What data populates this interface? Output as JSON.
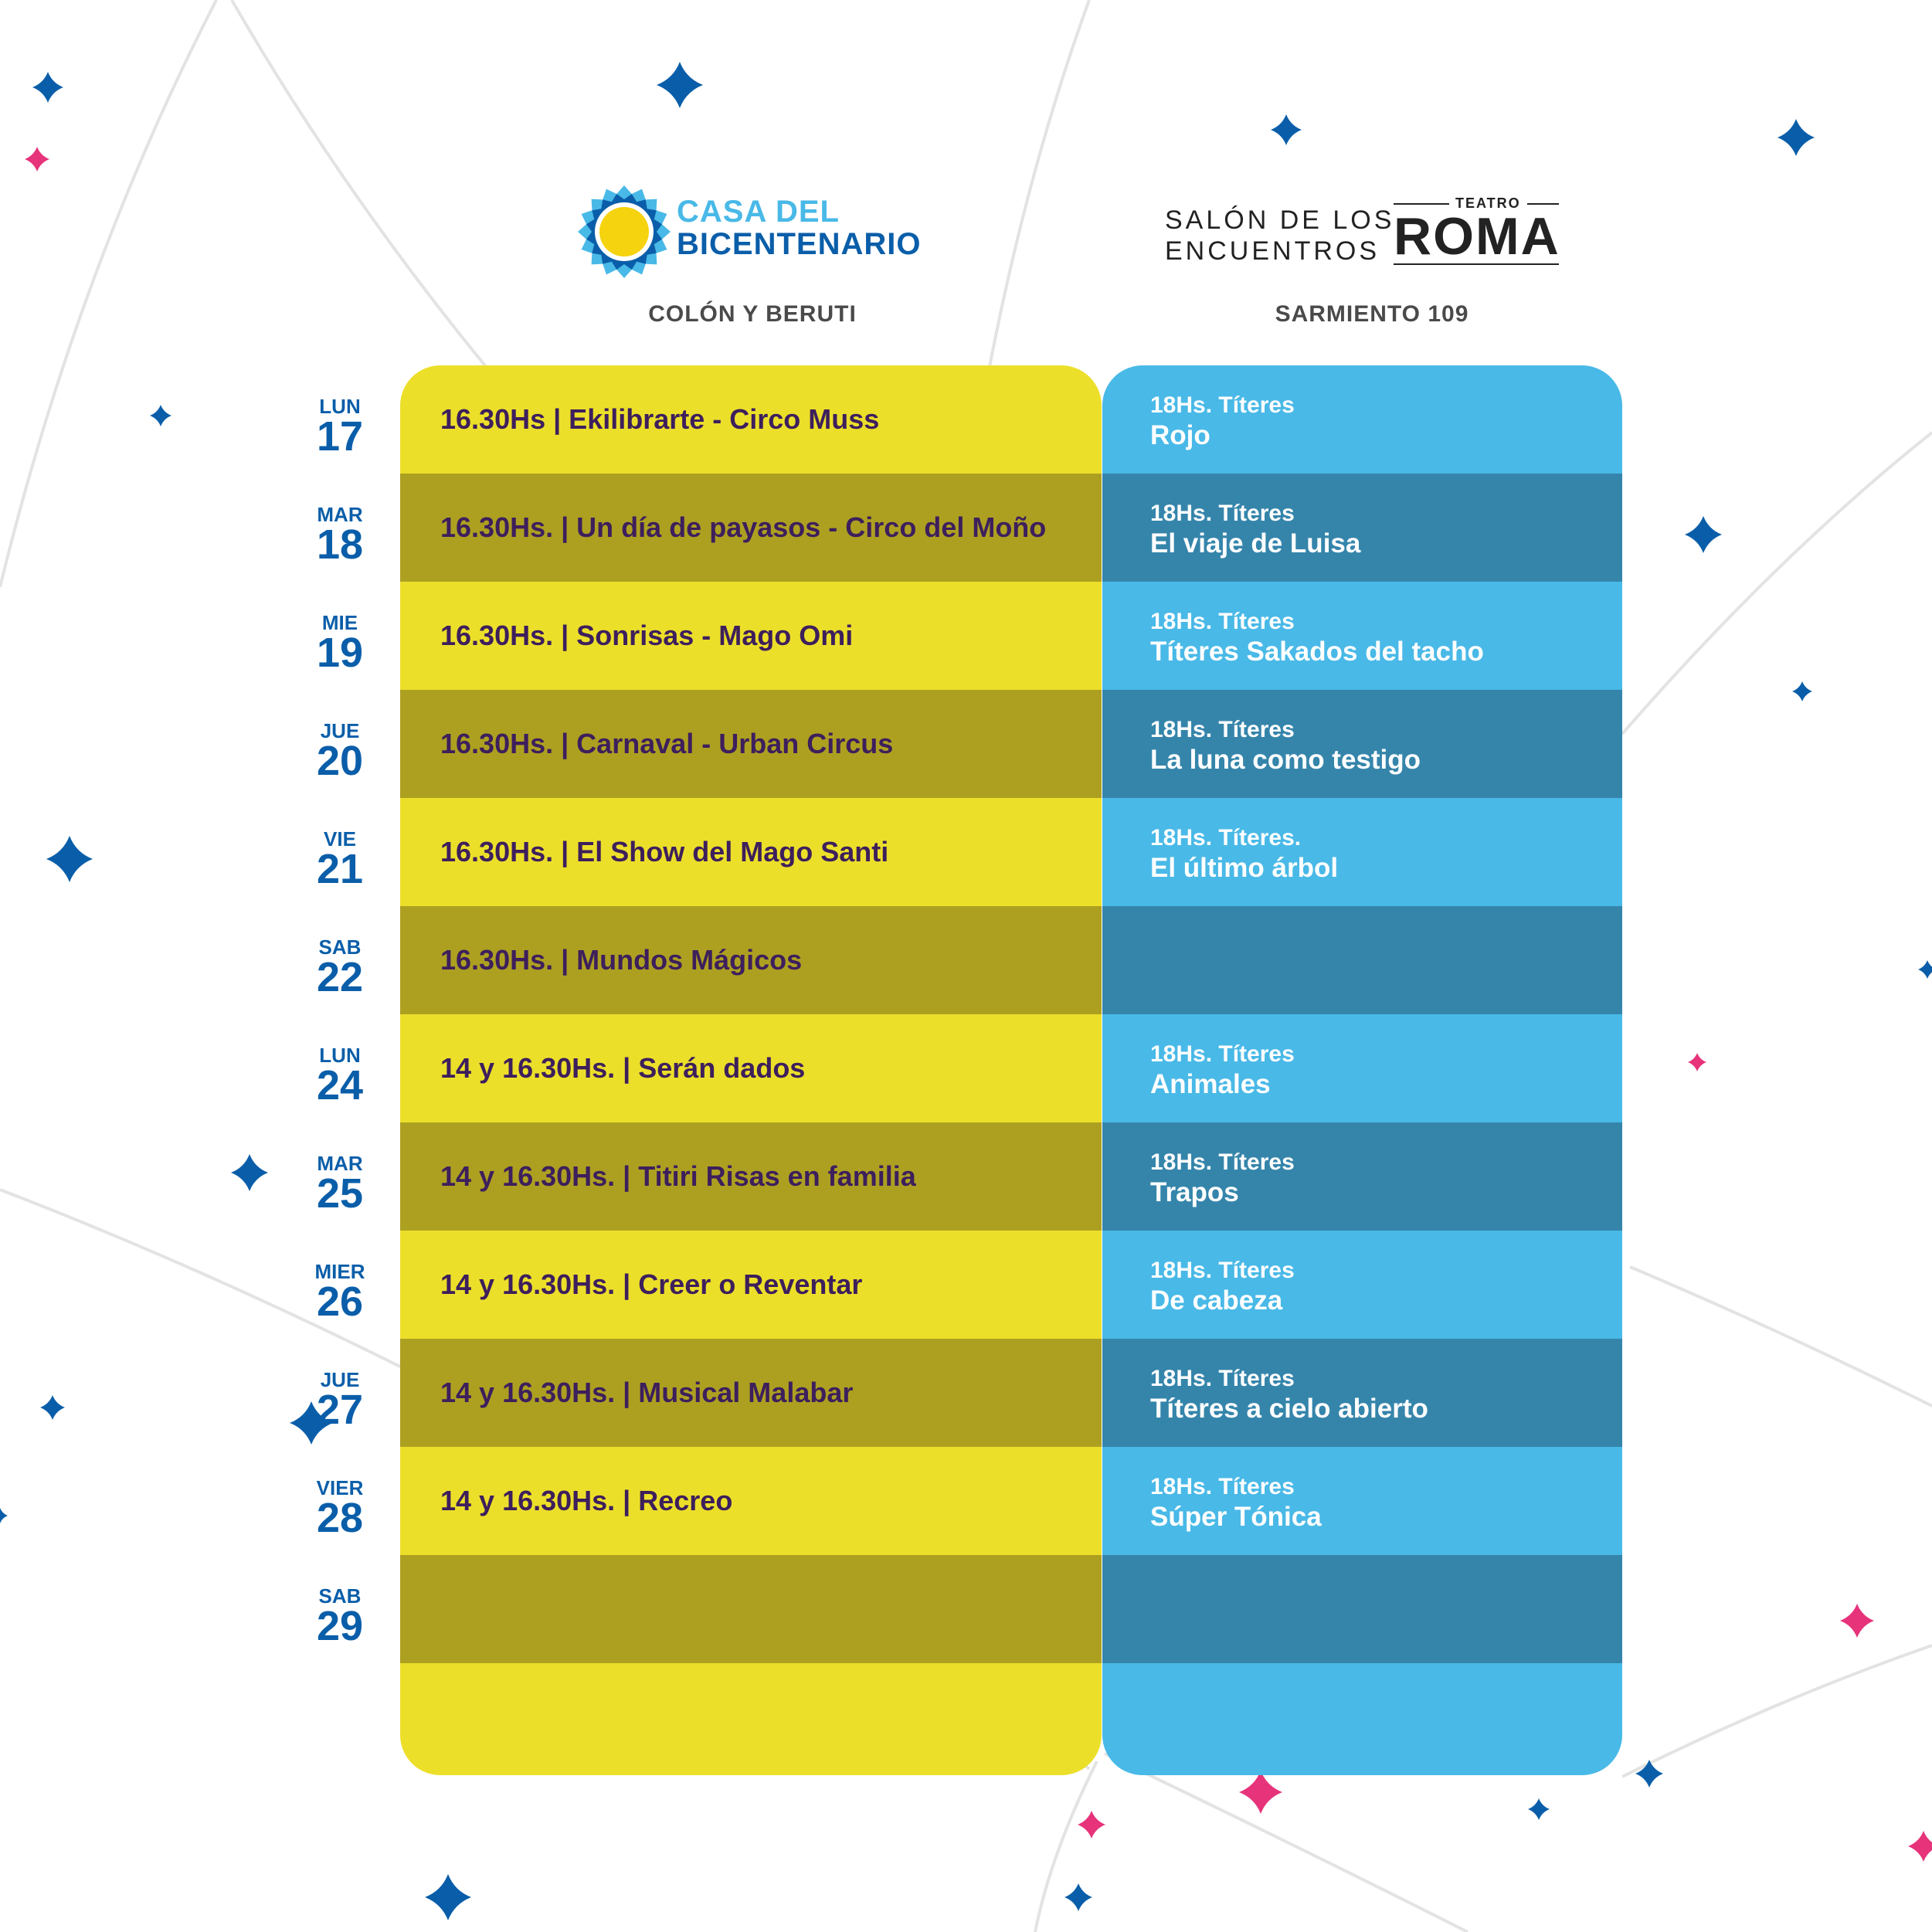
{
  "venues": {
    "left": {
      "logo_line1": "CASA DEL",
      "logo_line2": "BICENTENARIO",
      "address": "COLÓN Y BERUTI"
    },
    "right": {
      "logo_line1": "SALÓN DE LOS",
      "logo_line2": "ENCUENTROS",
      "logo_small": "TEATRO",
      "logo_big": "ROMA",
      "address": "SARMIENTO 109"
    }
  },
  "colors": {
    "yellow_light": "#ecdf2a",
    "yellow_dark": "#ada021",
    "blue_light": "#49b9e7",
    "blue_dark": "#3585ab",
    "day_text": "#0a5ea9",
    "left_text": "#3d1f5c",
    "star_blue": "#0a5ea9",
    "star_pink": "#e6337a"
  },
  "schedule": [
    {
      "day": "LUN",
      "num": "17",
      "left": "16.30Hs | Ekilibrarte - Circo Muss",
      "right_time": "18Hs. Títeres",
      "right_title": "Rojo"
    },
    {
      "day": "MAR",
      "num": "18",
      "left": "16.30Hs. | Un día de payasos - Circo del Moño",
      "right_time": "18Hs. Títeres",
      "right_title": "El viaje de Luisa"
    },
    {
      "day": "MIE",
      "num": "19",
      "left": "16.30Hs. | Sonrisas - Mago Omi",
      "right_time": "18Hs. Títeres",
      "right_title": "Títeres Sakados del tacho"
    },
    {
      "day": "JUE",
      "num": "20",
      "left": "16.30Hs. | Carnaval - Urban Circus",
      "right_time": "18Hs. Títeres",
      "right_title": "La luna como testigo"
    },
    {
      "day": "VIE",
      "num": "21",
      "left": "16.30Hs. | El Show del Mago Santi",
      "right_time": "18Hs. Títeres.",
      "right_title": "El último árbol"
    },
    {
      "day": "SAB",
      "num": "22",
      "left": "16.30Hs. | Mundos Mágicos",
      "right_time": "",
      "right_title": ""
    },
    {
      "day": "LUN",
      "num": "24",
      "left": "14 y 16.30Hs. | Serán dados",
      "right_time": "18Hs. Títeres",
      "right_title": "Animales"
    },
    {
      "day": "MAR",
      "num": "25",
      "left": "14 y 16.30Hs. | Titiri Risas en familia",
      "right_time": "18Hs. Títeres",
      "right_title": "Trapos"
    },
    {
      "day": "MIER",
      "num": "26",
      "left": "14 y 16.30Hs. | Creer o Reventar",
      "right_time": "18Hs. Títeres",
      "right_title": "De cabeza"
    },
    {
      "day": "JUE",
      "num": "27",
      "left": "14 y 16.30Hs. | Musical Malabar",
      "right_time": "18Hs. Títeres",
      "right_title": "Títeres a cielo abierto"
    },
    {
      "day": "VIER",
      "num": "28",
      "left": "14 y 16.30Hs. | Recreo",
      "right_time": "18Hs. Títeres",
      "right_title": "Súper Tónica"
    },
    {
      "day": "SAB",
      "num": "29",
      "left": "",
      "right_time": "",
      "right_title": ""
    }
  ]
}
